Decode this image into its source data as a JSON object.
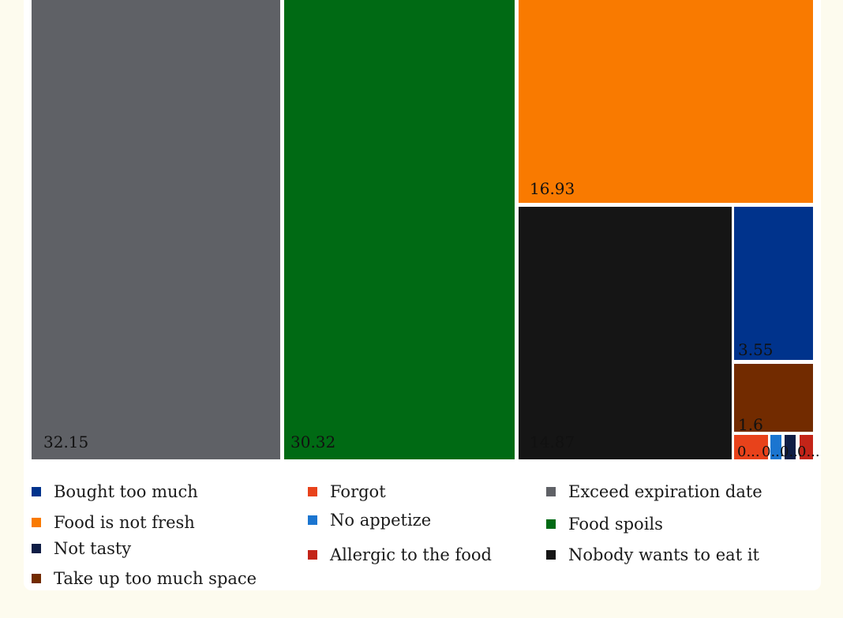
{
  "chart_data": {
    "type": "treemap",
    "values_shown": [
      {
        "name": "Exceed expiration date",
        "value": 32.15,
        "label": "32.15",
        "color": "#5f6166"
      },
      {
        "name": "Food spoils",
        "value": 30.32,
        "label": "30.32",
        "color": "#006a14"
      },
      {
        "name": "Food is not fresh",
        "value": 16.93,
        "label": "16.93",
        "color": "#f97a00"
      },
      {
        "name": "Nobody wants to eat it",
        "value": 14.87,
        "label": "14.87",
        "color": "#151515"
      },
      {
        "name": "Bought too much",
        "value": 3.55,
        "label": "3.55",
        "color": "#00338c"
      },
      {
        "name": "Take up too much space",
        "value": 1.6,
        "label": "1.6",
        "color": "#722b00"
      },
      {
        "name": "Forgot",
        "value": 0.23,
        "label": "0...",
        "color": "#e8421b"
      },
      {
        "name": "No appetize",
        "value": 0.12,
        "label": "0...",
        "color": "#1b75d0"
      },
      {
        "name": "Not tasty",
        "value": 0.12,
        "label": "0...",
        "color": "#0f1d45"
      },
      {
        "name": "Allergic to the food",
        "value": 0.11,
        "label": "0...",
        "color": "#c32418"
      }
    ],
    "legend_position": "bottom",
    "legend": [
      {
        "name": "Bought too much",
        "color": "#00338c"
      },
      {
        "name": "Forgot",
        "color": "#e8421b"
      },
      {
        "name": "Exceed expiration date",
        "color": "#5f6166"
      },
      {
        "name": "Food is not fresh",
        "color": "#f97a00"
      },
      {
        "name": "No appetize",
        "color": "#1b75d0"
      },
      {
        "name": "Food spoils",
        "color": "#006a14"
      },
      {
        "name": "Not tasty",
        "color": "#0f1d45"
      },
      {
        "name": "Allergic to the food",
        "color": "#c32418"
      },
      {
        "name": "Nobody wants to eat it",
        "color": "#151515"
      },
      {
        "name": "Take up too much space",
        "color": "#722b00"
      }
    ]
  }
}
